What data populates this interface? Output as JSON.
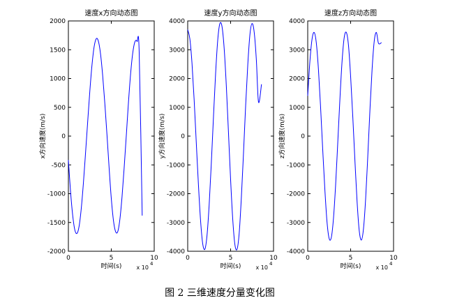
{
  "figure": {
    "caption": "图 2  三维速度分量变化图"
  },
  "chart_data": [
    {
      "type": "line",
      "title": "速度x方向动态图",
      "xlabel": "时间(s)",
      "ylabel": "x方向速度(m/s)",
      "x_exponent_label": "x 10",
      "x_exponent_power": "4",
      "xlim": [
        0,
        10
      ],
      "ylim": [
        -2000,
        2000
      ],
      "xticks": [
        0,
        5,
        10
      ],
      "yticks": [
        -2000,
        -1500,
        -1000,
        -500,
        0,
        500,
        1000,
        1500,
        2000
      ],
      "grid": false,
      "series": [
        {
          "color": "#0000ff",
          "x": [
            0,
            0.25,
            0.5,
            0.75,
            1,
            1.25,
            1.5,
            1.75,
            2,
            2.25,
            2.5,
            2.75,
            3,
            3.25,
            3.5,
            3.75,
            4,
            4.25,
            4.5,
            4.75,
            5,
            5.25,
            5.5,
            5.75,
            6,
            6.25,
            6.5,
            6.75,
            7,
            7.25,
            7.5,
            7.75,
            8,
            8.25,
            8.6
          ],
          "y": [
            -416,
            -960,
            -1373,
            -1628,
            -1690,
            -1565,
            -1258,
            -815,
            -291,
            249,
            782,
            1232,
            1552,
            1692,
            1646,
            1422,
            1044,
            560,
            16,
            -561,
            -1084,
            -1464,
            -1658,
            -1660,
            -1446,
            -1055,
            -546,
            14,
            586,
            1082,
            1443,
            1637,
            1644,
            1459,
            -1380
          ]
        }
      ]
    },
    {
      "type": "line",
      "title": "速度y方向动态图",
      "xlabel": "时间(s)",
      "ylabel": "y方向速度(m/s)",
      "x_exponent_label": "x 10",
      "x_exponent_power": "4",
      "xlim": [
        0,
        10
      ],
      "ylim": [
        -4000,
        4000
      ],
      "xticks": [
        0,
        5,
        10
      ],
      "yticks": [
        -4000,
        -3000,
        -2000,
        -1000,
        0,
        1000,
        2000,
        3000,
        4000
      ],
      "grid": false,
      "series": [
        {
          "color": "#0000ff",
          "x": [
            0,
            0.25,
            0.5,
            0.75,
            1,
            1.25,
            1.5,
            1.75,
            2,
            2.25,
            2.5,
            2.75,
            3,
            3.25,
            3.5,
            3.75,
            4,
            4.25,
            4.5,
            4.75,
            5,
            5.25,
            5.5,
            5.75,
            6,
            6.25,
            6.5,
            6.75,
            7,
            7.25,
            7.5,
            7.75,
            8,
            8.25,
            8.6
          ],
          "y": [
            3700,
            3380,
            2530,
            1260,
            -230,
            -1690,
            -2940,
            -3740,
            -3930,
            -3450,
            -2390,
            -950,
            650,
            2170,
            3340,
            3910,
            3800,
            3040,
            1740,
            120,
            -1520,
            -2900,
            -3770,
            -3930,
            -3370,
            -2140,
            -600,
            1050,
            2480,
            3530,
            3910,
            3600,
            2640,
            1180,
            1800
          ]
        }
      ]
    },
    {
      "type": "line",
      "title": "速度z方向动态图",
      "xlabel": "时间(s)",
      "ylabel": "z方向速度(m/s)",
      "x_exponent_label": "x 10",
      "x_exponent_power": "4",
      "xlim": [
        0,
        10
      ],
      "ylim": [
        -4000,
        4000
      ],
      "xticks": [
        0,
        5,
        10
      ],
      "yticks": [
        -4000,
        -3000,
        -2000,
        -1000,
        0,
        1000,
        2000,
        3000,
        4000
      ],
      "grid": false,
      "series": [
        {
          "color": "#0000ff",
          "x": [
            0,
            0.25,
            0.5,
            0.75,
            1,
            1.25,
            1.5,
            1.75,
            2,
            2.25,
            2.5,
            2.75,
            3,
            3.25,
            3.5,
            3.75,
            4,
            4.25,
            4.5,
            4.75,
            5,
            5.25,
            5.5,
            5.75,
            6,
            6.25,
            6.5,
            6.75,
            7,
            7.25,
            7.5,
            7.75,
            8,
            8.25,
            8.6
          ],
          "y": [
            1400,
            2580,
            3360,
            3600,
            3240,
            2310,
            1000,
            -480,
            -1870,
            -2990,
            -3560,
            -3520,
            -2860,
            -1700,
            -230,
            1280,
            2590,
            3420,
            3600,
            3150,
            2070,
            680,
            -850,
            -2270,
            -3280,
            -3610,
            -3210,
            -2170,
            -690,
            910,
            2320,
            3300,
            3600,
            3220,
            3250
          ]
        }
      ]
    }
  ]
}
